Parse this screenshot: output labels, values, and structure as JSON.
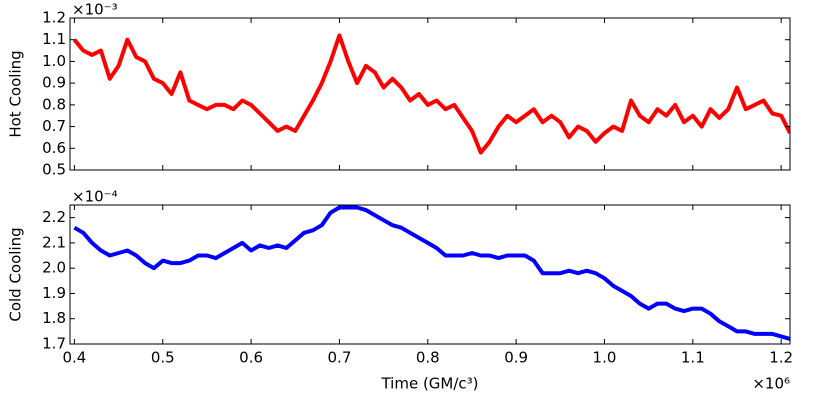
{
  "chart_data": [
    {
      "type": "line",
      "ylabel": "Hot Cooling",
      "y_offset_label": "×10⁻³",
      "x": [
        0.4,
        0.41,
        0.42,
        0.43,
        0.44,
        0.45,
        0.46,
        0.47,
        0.48,
        0.49,
        0.5,
        0.51,
        0.52,
        0.53,
        0.54,
        0.55,
        0.56,
        0.57,
        0.58,
        0.59,
        0.6,
        0.61,
        0.62,
        0.63,
        0.64,
        0.65,
        0.66,
        0.67,
        0.68,
        0.69,
        0.7,
        0.71,
        0.72,
        0.73,
        0.74,
        0.75,
        0.76,
        0.77,
        0.78,
        0.79,
        0.8,
        0.81,
        0.82,
        0.83,
        0.84,
        0.85,
        0.86,
        0.87,
        0.88,
        0.89,
        0.9,
        0.91,
        0.92,
        0.93,
        0.94,
        0.95,
        0.96,
        0.97,
        0.98,
        0.99,
        1.0,
        1.01,
        1.02,
        1.03,
        1.04,
        1.05,
        1.06,
        1.07,
        1.08,
        1.09,
        1.1,
        1.11,
        1.12,
        1.13,
        1.14,
        1.15,
        1.16,
        1.17,
        1.18,
        1.19,
        1.2,
        1.21
      ],
      "values": [
        1.1,
        1.05,
        1.03,
        1.05,
        0.92,
        0.98,
        1.1,
        1.02,
        1.0,
        0.92,
        0.9,
        0.85,
        0.95,
        0.82,
        0.8,
        0.78,
        0.8,
        0.8,
        0.78,
        0.82,
        0.8,
        0.76,
        0.72,
        0.68,
        0.7,
        0.68,
        0.75,
        0.82,
        0.9,
        1.0,
        1.12,
        1.0,
        0.9,
        0.98,
        0.95,
        0.88,
        0.92,
        0.88,
        0.82,
        0.85,
        0.8,
        0.82,
        0.78,
        0.8,
        0.74,
        0.68,
        0.58,
        0.63,
        0.7,
        0.75,
        0.72,
        0.75,
        0.78,
        0.72,
        0.75,
        0.72,
        0.65,
        0.7,
        0.68,
        0.63,
        0.67,
        0.7,
        0.68,
        0.82,
        0.75,
        0.72,
        0.78,
        0.75,
        0.8,
        0.72,
        0.75,
        0.7,
        0.78,
        0.74,
        0.78,
        0.88,
        0.78,
        0.8,
        0.82,
        0.76,
        0.75,
        0.67
      ],
      "color": "#ff0000",
      "xlim": [
        0.395,
        1.21
      ],
      "xticks": [
        0.4,
        0.5,
        0.6,
        0.7,
        0.8,
        0.9,
        1.0,
        1.1,
        1.2
      ],
      "ylim": [
        0.5,
        1.2
      ],
      "yticks": [
        0.5,
        0.6,
        0.7,
        0.8,
        0.9,
        {
          "value": 1,
          "label": "1.0"
        },
        1.1,
        1.2
      ]
    },
    {
      "type": "line",
      "ylabel": "Cold Cooling",
      "y_offset_label": "×10⁻⁴",
      "xlabel": "Time (GM/c³)",
      "x_offset_label": "×10⁶",
      "x": [
        0.4,
        0.41,
        0.42,
        0.43,
        0.44,
        0.45,
        0.46,
        0.47,
        0.48,
        0.49,
        0.5,
        0.51,
        0.52,
        0.53,
        0.54,
        0.55,
        0.56,
        0.57,
        0.58,
        0.59,
        0.6,
        0.61,
        0.62,
        0.63,
        0.64,
        0.65,
        0.66,
        0.67,
        0.68,
        0.69,
        0.7,
        0.71,
        0.72,
        0.73,
        0.74,
        0.75,
        0.76,
        0.77,
        0.78,
        0.79,
        0.8,
        0.81,
        0.82,
        0.83,
        0.84,
        0.85,
        0.86,
        0.87,
        0.88,
        0.89,
        0.9,
        0.91,
        0.92,
        0.93,
        0.94,
        0.95,
        0.96,
        0.97,
        0.98,
        0.99,
        1.0,
        1.01,
        1.02,
        1.03,
        1.04,
        1.05,
        1.06,
        1.07,
        1.08,
        1.09,
        1.1,
        1.11,
        1.12,
        1.13,
        1.14,
        1.15,
        1.16,
        1.17,
        1.18,
        1.19,
        1.2,
        1.21
      ],
      "values": [
        2.16,
        2.14,
        2.1,
        2.07,
        2.05,
        2.06,
        2.07,
        2.05,
        2.02,
        2.0,
        2.03,
        2.02,
        2.02,
        2.03,
        2.05,
        2.05,
        2.04,
        2.06,
        2.08,
        2.1,
        2.07,
        2.09,
        2.08,
        2.09,
        2.08,
        2.11,
        2.14,
        2.15,
        2.17,
        2.22,
        2.24,
        2.24,
        2.24,
        2.23,
        2.21,
        2.19,
        2.17,
        2.16,
        2.14,
        2.12,
        2.1,
        2.08,
        2.05,
        2.05,
        2.05,
        2.06,
        2.05,
        2.05,
        2.04,
        2.05,
        2.05,
        2.05,
        2.03,
        1.98,
        1.98,
        1.98,
        1.99,
        1.98,
        1.99,
        1.98,
        1.96,
        1.93,
        1.91,
        1.89,
        1.86,
        1.84,
        1.86,
        1.86,
        1.84,
        1.83,
        1.84,
        1.84,
        1.82,
        1.79,
        1.77,
        1.75,
        1.75,
        1.74,
        1.74,
        1.74,
        1.73,
        1.72
      ],
      "color": "#0000ff",
      "xlim": [
        0.395,
        1.21
      ],
      "xticks": [
        0.4,
        0.5,
        0.6,
        0.7,
        0.8,
        0.9,
        {
          "value": 1,
          "label": "1.0"
        },
        1.1,
        1.2
      ],
      "ylim": [
        1.7,
        2.25
      ],
      "yticks": [
        1.7,
        1.8,
        1.9,
        {
          "value": 2,
          "label": "2.0"
        },
        2.1,
        2.2
      ]
    }
  ]
}
